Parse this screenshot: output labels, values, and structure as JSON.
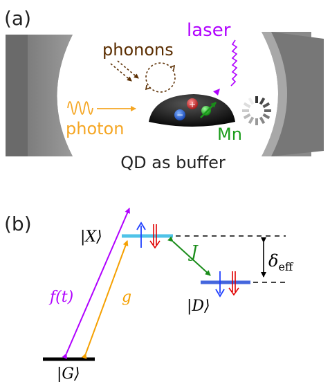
{
  "panel_a": {
    "label": "(a)",
    "laser_label": "laser",
    "phonons_label": "phonons",
    "photon_label": "photon",
    "mn_label": "Mn",
    "caption": "QD as buffer",
    "plus_sign": "+",
    "minus_sign": "−"
  },
  "panel_b": {
    "label": "(b)",
    "state_x": "|X⟩",
    "state_d": "|D⟩",
    "state_g": "|G⟩",
    "coupling_j": "J",
    "drive_f": "f(t)",
    "coupling_g": "g",
    "detuning_symbol": "δ",
    "detuning_sub": "eff"
  },
  "colors": {
    "laser": "#b000ff",
    "phonons": "#5a2d00",
    "photon": "#f5a623",
    "mn": "#1a9c1a",
    "level_x": "#4fc3e8",
    "level_d": "#4466dd",
    "level_g": "#000000",
    "spin_up": "#1f3fff",
    "spin_down": "#e00000",
    "j_arrow": "#1a8c1a",
    "f_arrow": "#b000ff",
    "g_arrow": "#f5a000"
  }
}
